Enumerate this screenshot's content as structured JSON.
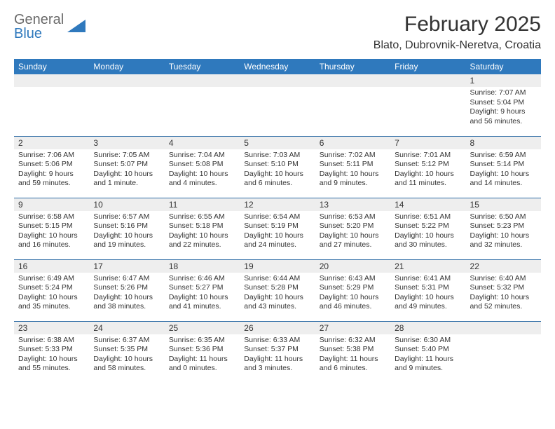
{
  "brand": {
    "part1": "General",
    "part2": "Blue",
    "shape_color": "#2f79bd"
  },
  "title": "February 2025",
  "location": "Blato, Dubrovnik-Neretva, Croatia",
  "colors": {
    "header_bg": "#2f79bd",
    "header_fg": "#ffffff",
    "daynum_bg": "#eeeeee",
    "row_border": "#2f6ca6",
    "text": "#333333",
    "logo_gray": "#6a6a6a"
  },
  "day_labels": [
    "Sunday",
    "Monday",
    "Tuesday",
    "Wednesday",
    "Thursday",
    "Friday",
    "Saturday"
  ],
  "weeks": [
    [
      null,
      null,
      null,
      null,
      null,
      null,
      {
        "n": "1",
        "sunrise": "7:07 AM",
        "sunset": "5:04 PM",
        "daylight": "9 hours and 56 minutes."
      }
    ],
    [
      {
        "n": "2",
        "sunrise": "7:06 AM",
        "sunset": "5:06 PM",
        "daylight": "9 hours and 59 minutes."
      },
      {
        "n": "3",
        "sunrise": "7:05 AM",
        "sunset": "5:07 PM",
        "daylight": "10 hours and 1 minute."
      },
      {
        "n": "4",
        "sunrise": "7:04 AM",
        "sunset": "5:08 PM",
        "daylight": "10 hours and 4 minutes."
      },
      {
        "n": "5",
        "sunrise": "7:03 AM",
        "sunset": "5:10 PM",
        "daylight": "10 hours and 6 minutes."
      },
      {
        "n": "6",
        "sunrise": "7:02 AM",
        "sunset": "5:11 PM",
        "daylight": "10 hours and 9 minutes."
      },
      {
        "n": "7",
        "sunrise": "7:01 AM",
        "sunset": "5:12 PM",
        "daylight": "10 hours and 11 minutes."
      },
      {
        "n": "8",
        "sunrise": "6:59 AM",
        "sunset": "5:14 PM",
        "daylight": "10 hours and 14 minutes."
      }
    ],
    [
      {
        "n": "9",
        "sunrise": "6:58 AM",
        "sunset": "5:15 PM",
        "daylight": "10 hours and 16 minutes."
      },
      {
        "n": "10",
        "sunrise": "6:57 AM",
        "sunset": "5:16 PM",
        "daylight": "10 hours and 19 minutes."
      },
      {
        "n": "11",
        "sunrise": "6:55 AM",
        "sunset": "5:18 PM",
        "daylight": "10 hours and 22 minutes."
      },
      {
        "n": "12",
        "sunrise": "6:54 AM",
        "sunset": "5:19 PM",
        "daylight": "10 hours and 24 minutes."
      },
      {
        "n": "13",
        "sunrise": "6:53 AM",
        "sunset": "5:20 PM",
        "daylight": "10 hours and 27 minutes."
      },
      {
        "n": "14",
        "sunrise": "6:51 AM",
        "sunset": "5:22 PM",
        "daylight": "10 hours and 30 minutes."
      },
      {
        "n": "15",
        "sunrise": "6:50 AM",
        "sunset": "5:23 PM",
        "daylight": "10 hours and 32 minutes."
      }
    ],
    [
      {
        "n": "16",
        "sunrise": "6:49 AM",
        "sunset": "5:24 PM",
        "daylight": "10 hours and 35 minutes."
      },
      {
        "n": "17",
        "sunrise": "6:47 AM",
        "sunset": "5:26 PM",
        "daylight": "10 hours and 38 minutes."
      },
      {
        "n": "18",
        "sunrise": "6:46 AM",
        "sunset": "5:27 PM",
        "daylight": "10 hours and 41 minutes."
      },
      {
        "n": "19",
        "sunrise": "6:44 AM",
        "sunset": "5:28 PM",
        "daylight": "10 hours and 43 minutes."
      },
      {
        "n": "20",
        "sunrise": "6:43 AM",
        "sunset": "5:29 PM",
        "daylight": "10 hours and 46 minutes."
      },
      {
        "n": "21",
        "sunrise": "6:41 AM",
        "sunset": "5:31 PM",
        "daylight": "10 hours and 49 minutes."
      },
      {
        "n": "22",
        "sunrise": "6:40 AM",
        "sunset": "5:32 PM",
        "daylight": "10 hours and 52 minutes."
      }
    ],
    [
      {
        "n": "23",
        "sunrise": "6:38 AM",
        "sunset": "5:33 PM",
        "daylight": "10 hours and 55 minutes."
      },
      {
        "n": "24",
        "sunrise": "6:37 AM",
        "sunset": "5:35 PM",
        "daylight": "10 hours and 58 minutes."
      },
      {
        "n": "25",
        "sunrise": "6:35 AM",
        "sunset": "5:36 PM",
        "daylight": "11 hours and 0 minutes."
      },
      {
        "n": "26",
        "sunrise": "6:33 AM",
        "sunset": "5:37 PM",
        "daylight": "11 hours and 3 minutes."
      },
      {
        "n": "27",
        "sunrise": "6:32 AM",
        "sunset": "5:38 PM",
        "daylight": "11 hours and 6 minutes."
      },
      {
        "n": "28",
        "sunrise": "6:30 AM",
        "sunset": "5:40 PM",
        "daylight": "11 hours and 9 minutes."
      },
      null
    ]
  ],
  "labels": {
    "sunrise": "Sunrise: ",
    "sunset": "Sunset: ",
    "daylight": "Daylight: "
  }
}
